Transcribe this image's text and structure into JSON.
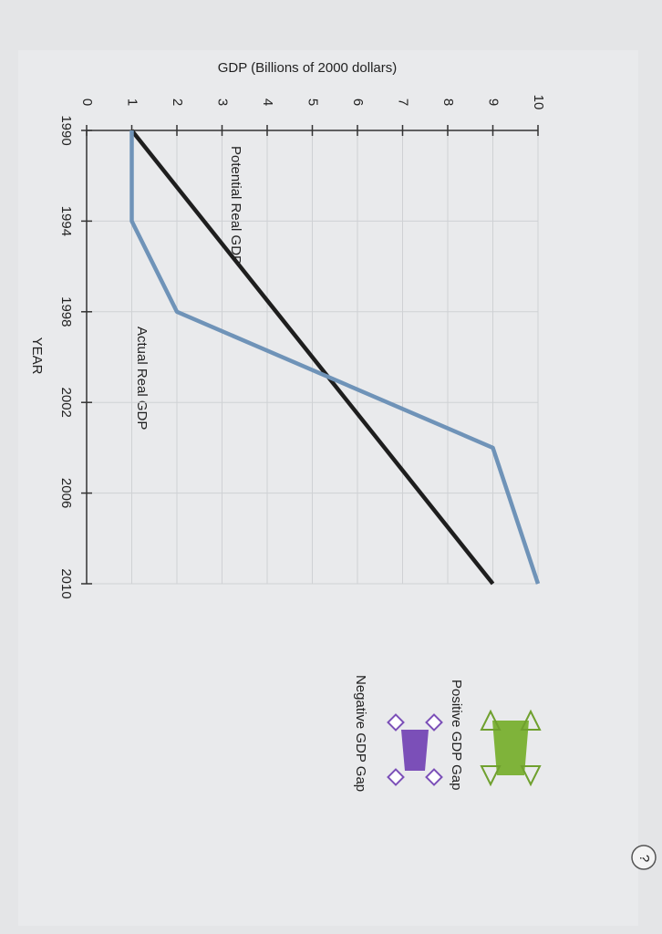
{
  "chart_data": {
    "type": "line",
    "ylabel": "GDP (Billions of 2000 dollars)",
    "xlabel": "YEAR",
    "x": [
      1990,
      1994,
      1998,
      2004,
      2010
    ],
    "series": [
      {
        "name": "Potential Real GDP",
        "color": "#1e1e1e",
        "values": [
          1,
          2.6,
          4.2,
          6.6,
          9
        ]
      },
      {
        "name": "Actual Real GDP",
        "color": "#6f93b8",
        "values": [
          1,
          1,
          2,
          9,
          10
        ]
      }
    ],
    "xlim": [
      1990,
      2010
    ],
    "xticks": [
      1990,
      1994,
      1998,
      2002,
      2006,
      2010
    ],
    "ylim": [
      0,
      10
    ],
    "yticks": [
      0,
      1,
      2,
      3,
      4,
      5,
      6,
      7,
      8,
      9,
      10
    ],
    "grid": true
  },
  "tools": {
    "positive": "Positive GDP Gap",
    "negative": "Negative GDP Gap"
  },
  "help": "?"
}
